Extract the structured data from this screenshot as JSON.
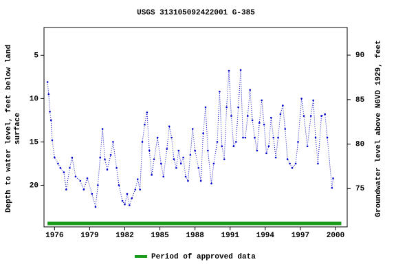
{
  "chart_data": {
    "type": "line",
    "title": "USGS 313105092422001 G-385",
    "y_label": [
      "Depth to water level, feet below land",
      "surface"
    ],
    "y2_label": "Groundwater level above NGVD 1929, feet",
    "xlim": [
      1975.1,
      2001.0
    ],
    "xticks": [
      1976,
      1979,
      1982,
      1985,
      1988,
      1991,
      1994,
      1997,
      2000
    ],
    "ylim": [
      24.8,
      1.8
    ],
    "yticks": [
      5,
      10,
      15,
      20
    ],
    "y2lim": [
      70.7,
      93.1
    ],
    "y2ticks": [
      75,
      80,
      85,
      90
    ],
    "series": [
      {
        "color": "#0000cc",
        "x": [
          1975.4,
          1975.5,
          1975.6,
          1975.7,
          1975.8,
          1976.0,
          1976.3,
          1976.5,
          1976.8,
          1977.0,
          1977.3,
          1977.5,
          1977.8,
          1978.2,
          1978.5,
          1978.8,
          1979.2,
          1979.5,
          1979.7,
          1979.9,
          1980.1,
          1980.3,
          1980.5,
          1980.8,
          1981.0,
          1981.3,
          1981.5,
          1981.8,
          1982.0,
          1982.2,
          1982.4,
          1982.6,
          1982.9,
          1983.1,
          1983.3,
          1983.5,
          1983.7,
          1983.9,
          1984.1,
          1984.3,
          1984.5,
          1984.8,
          1985.1,
          1985.3,
          1985.6,
          1985.8,
          1986.0,
          1986.2,
          1986.4,
          1986.6,
          1986.8,
          1987.0,
          1987.2,
          1987.4,
          1987.6,
          1987.8,
          1988.0,
          1988.3,
          1988.5,
          1988.7,
          1988.9,
          1989.1,
          1989.4,
          1989.6,
          1989.9,
          1990.1,
          1990.3,
          1990.5,
          1990.7,
          1990.9,
          1991.1,
          1991.3,
          1991.5,
          1991.7,
          1991.9,
          1992.1,
          1992.3,
          1992.5,
          1992.7,
          1992.9,
          1993.1,
          1993.3,
          1993.5,
          1993.7,
          1993.9,
          1994.1,
          1994.3,
          1994.5,
          1994.7,
          1994.9,
          1995.1,
          1995.3,
          1995.5,
          1995.7,
          1995.9,
          1996.1,
          1996.3,
          1996.6,
          1996.8,
          1997.1,
          1997.3,
          1997.6,
          1997.9,
          1998.1,
          1998.3,
          1998.5,
          1998.8,
          1999.1,
          1999.3,
          1999.7,
          1999.8
        ],
        "values": [
          8.1,
          9.5,
          11.5,
          12.5,
          14.8,
          16.8,
          17.5,
          18,
          18.5,
          20.5,
          18,
          16.8,
          19,
          19.5,
          20.5,
          19.2,
          21,
          22.5,
          20,
          16.8,
          13.5,
          17,
          18.2,
          16.5,
          15,
          18,
          20,
          21.8,
          22.2,
          21,
          22.3,
          21.5,
          20.5,
          19.3,
          20.5,
          15,
          13,
          11.6,
          16,
          18.8,
          17,
          14.5,
          17.5,
          19,
          15.8,
          13.2,
          14.5,
          17,
          18,
          16,
          17.5,
          16.8,
          19,
          19.5,
          16.5,
          13.5,
          16,
          18,
          19.5,
          14,
          11,
          16,
          19.8,
          17.5,
          15,
          9.2,
          15.5,
          17,
          11,
          6.8,
          12,
          15.5,
          15,
          11,
          6.7,
          14.5,
          14.5,
          12,
          9,
          12.5,
          14.5,
          16,
          12.8,
          10.2,
          13,
          16.3,
          15.5,
          12.2,
          14.5,
          16.8,
          14.5,
          11.8,
          10.8,
          13.5,
          17,
          17.5,
          18,
          17.5,
          15,
          10,
          12,
          15.5,
          12,
          10.2,
          14.5,
          17.5,
          12,
          11.8,
          14.5,
          20.3,
          19.2
        ]
      }
    ],
    "approved_period": {
      "name": "Period of approved data",
      "color": "#1a9a1a",
      "x": [
        1975.4,
        2000.5
      ]
    }
  }
}
